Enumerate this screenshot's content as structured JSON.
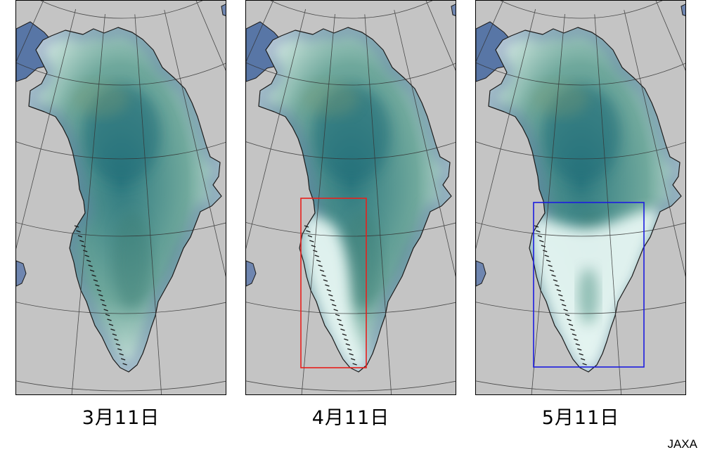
{
  "panels": [
    {
      "date": "3月11日",
      "highlight": null
    },
    {
      "date": "4月11日",
      "highlight": {
        "color": "#e8201c"
      }
    },
    {
      "date": "5月11日",
      "highlight": {
        "color": "#1c1ce0"
      }
    }
  ],
  "credit": "JAXA",
  "colors": {
    "background": "#c4c4c4",
    "graticule": "#333333",
    "coast": "#1a1a1a",
    "ice_dark": "#2f7a80",
    "ice_mid": "#6fa89c",
    "melt": "#e6f6f3"
  }
}
